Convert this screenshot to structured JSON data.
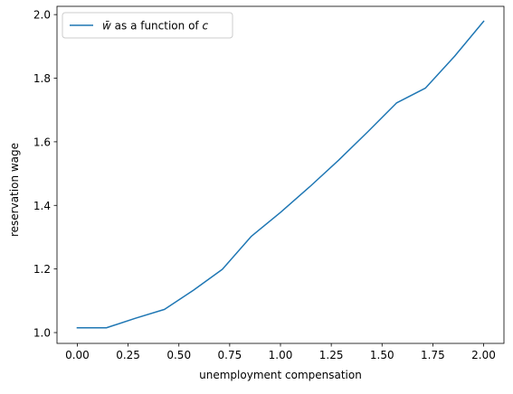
{
  "chart_data": {
    "type": "line",
    "xlabel": "unemployment compensation",
    "ylabel": "reservation wage",
    "xlim": [
      -0.1,
      2.1
    ],
    "ylim": [
      0.966,
      2.026
    ],
    "xticks": [
      0.0,
      0.25,
      0.5,
      0.75,
      1.0,
      1.25,
      1.5,
      1.75,
      2.0
    ],
    "xtick_labels": [
      "0.00",
      "0.25",
      "0.50",
      "0.75",
      "1.00",
      "1.25",
      "1.50",
      "1.75",
      "2.00"
    ],
    "yticks": [
      1.0,
      1.2,
      1.4,
      1.6,
      1.8,
      2.0
    ],
    "ytick_labels": [
      "1.0",
      "1.2",
      "1.4",
      "1.6",
      "1.8",
      "2.0"
    ],
    "grid": false,
    "legend_position": "upper-left",
    "series": [
      {
        "name": "w̄ as a function of c",
        "name_parts": {
          "symbol": "w̄",
          "mid": " as a function of ",
          "var": "c"
        },
        "color": "#1f77b4",
        "x": [
          0.0,
          0.143,
          0.286,
          0.429,
          0.571,
          0.714,
          0.857,
          1.0,
          1.143,
          1.286,
          1.429,
          1.571,
          1.714,
          1.857,
          2.0
        ],
        "y": [
          1.015,
          1.015,
          1.045,
          1.073,
          1.133,
          1.199,
          1.303,
          1.378,
          1.458,
          1.542,
          1.631,
          1.722,
          1.769,
          1.869,
          1.979
        ]
      }
    ]
  }
}
